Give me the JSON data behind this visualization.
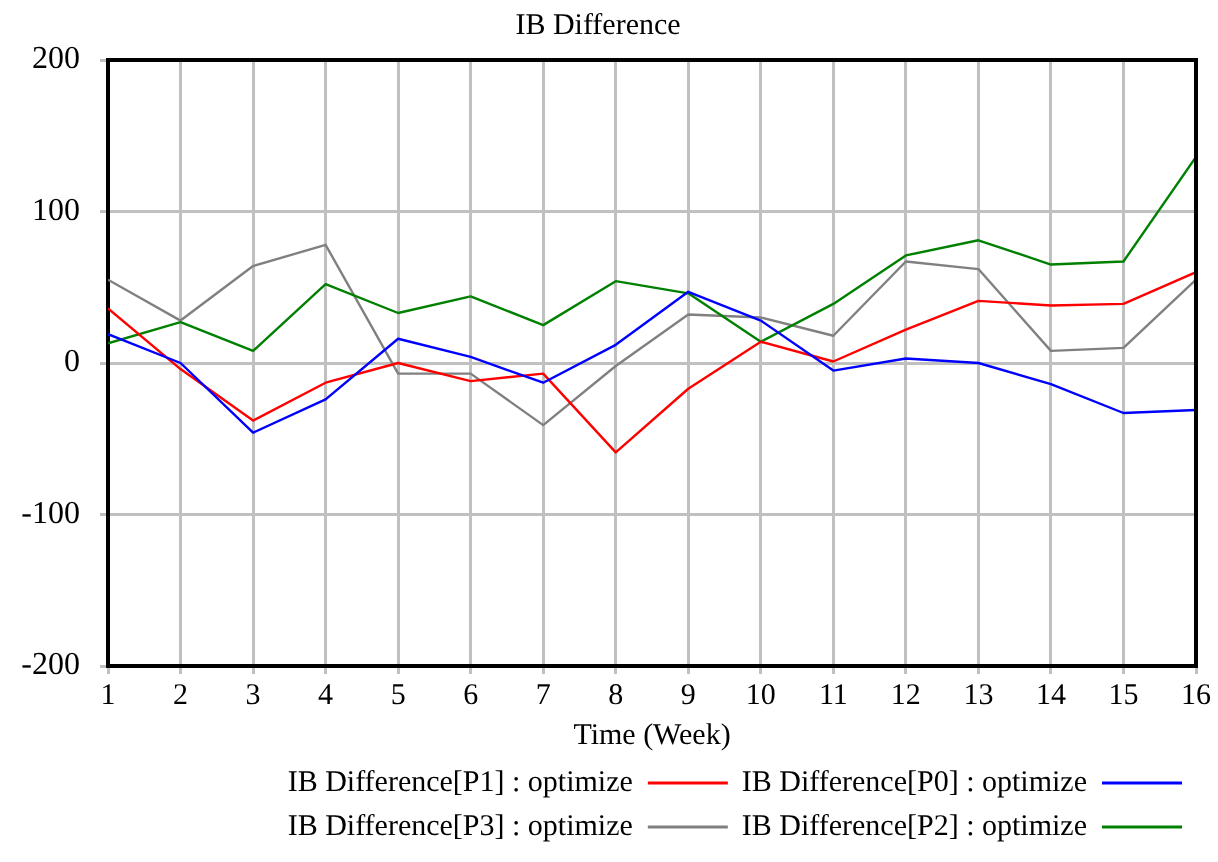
{
  "chart_data": {
    "type": "line",
    "title": "IB Difference",
    "xlabel": "Time (Week)",
    "x": [
      1,
      2,
      3,
      4,
      5,
      6,
      7,
      8,
      9,
      10,
      11,
      12,
      13,
      14,
      15,
      16
    ],
    "xlim": [
      1,
      16
    ],
    "xticks": [
      1,
      2,
      3,
      4,
      5,
      6,
      7,
      8,
      9,
      10,
      11,
      12,
      13,
      14,
      15,
      16
    ],
    "ylim": [
      -200,
      200
    ],
    "yticks": [
      -200,
      -100,
      0,
      100,
      200
    ],
    "grid": true,
    "legend": "bottom",
    "marker": "none",
    "line_style": "solid",
    "series": [
      {
        "name": "IB Difference[P0] : optimize",
        "color": "#0000ff",
        "values": [
          19,
          0,
          -46,
          -24,
          16,
          4,
          -13,
          12,
          47,
          28,
          -5,
          3,
          0,
          -14,
          -33,
          -31
        ]
      },
      {
        "name": "IB Difference[P1] : optimize",
        "color": "#ff0000",
        "values": [
          36,
          -4,
          -38,
          -13,
          0,
          -12,
          -7,
          -59,
          -17,
          14,
          1,
          22,
          41,
          38,
          39,
          60
        ]
      },
      {
        "name": "IB Difference[P2] : optimize",
        "color": "#008000",
        "values": [
          13,
          27,
          8,
          52,
          33,
          44,
          25,
          54,
          46,
          14,
          39,
          71,
          81,
          65,
          67,
          136
        ]
      },
      {
        "name": "IB Difference[P3] : optimize",
        "color": "#808080",
        "values": [
          55,
          28,
          64,
          78,
          -7,
          -7,
          -41,
          -2,
          32,
          30,
          18,
          67,
          62,
          8,
          10,
          55
        ]
      }
    ]
  }
}
